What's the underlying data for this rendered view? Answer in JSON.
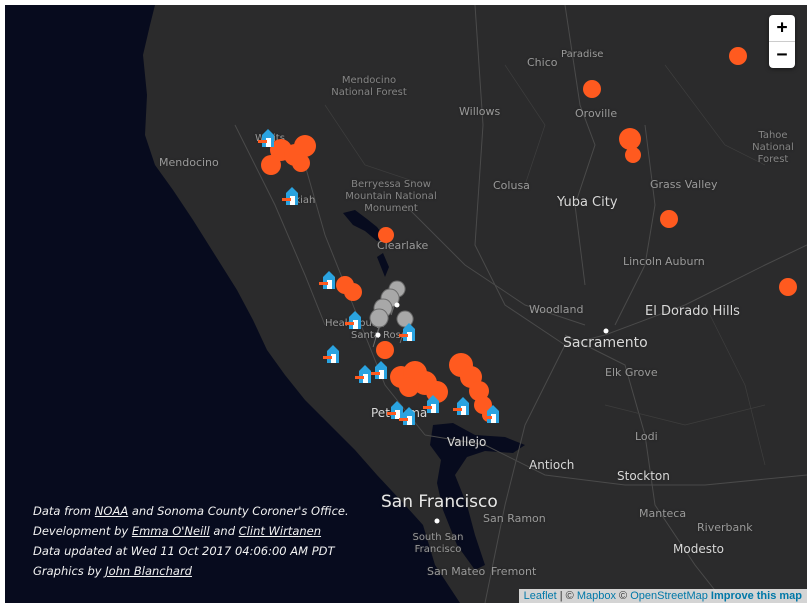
{
  "zoom": {
    "in_label": "+",
    "out_label": "−"
  },
  "places": {
    "chico": "Chico",
    "paradise": "Paradise",
    "mendocino_nf": "Mendocino National Forest",
    "oroville": "Oroville",
    "willows": "Willows",
    "tahoe_nf": "Tahoe National Forest",
    "mendocino": "Mendocino",
    "willits": "Willits",
    "grass_valley": "Grass Valley",
    "colusa": "Colusa",
    "berryessa": "Berryessa Snow Mountain National Monument",
    "yuba_city": "Yuba City",
    "ukiah": "Ukiah",
    "clearlake": "Clearlake",
    "lincoln": "Lincoln",
    "auburn": "Auburn",
    "woodland": "Woodland",
    "el_dorado_hills": "El Dorado Hills",
    "healdsburg": "Healdsburg",
    "sacramento": "Sacramento",
    "santa_rosa": "Santa Rosa",
    "elk_grove": "Elk Grove",
    "petaluma": "Petaluma",
    "lodi": "Lodi",
    "vallejo": "Vallejo",
    "antioch": "Antioch",
    "stockton": "Stockton",
    "san_francisco": "San Francisco",
    "san_ramon": "San Ramon",
    "south_sf": "South San Francisco",
    "manteca": "Manteca",
    "riverbank": "Riverbank",
    "modesto": "Modesto",
    "san_mateo": "San Mateo",
    "fremont": "Fremont"
  },
  "credits": {
    "line1_pre": "Data from ",
    "line1_link": "NOAA",
    "line1_post": " and Sonoma County Coroner's Office.",
    "line2_pre": "Development by ",
    "line2_link1": "Emma O'Neill",
    "line2_mid": " and ",
    "line2_link2": "Clint Wirtanen",
    "line3": "Data updated at Wed 11 Oct 2017 04:06:00 AM PDT",
    "line4_pre": "Graphics by ",
    "line4_link": "John Blanchard"
  },
  "attribution": {
    "leaflet": "Leaflet",
    "sep1": " | © ",
    "mapbox": "Mapbox",
    "sep2": " © ",
    "osm": "OpenStreetMap",
    "improve": "Improve this map"
  },
  "colors": {
    "fire": "#ff5a1f",
    "shelter": "#2aa3e0",
    "pin": "#a8a8a8",
    "land": "#2b2b2c",
    "water": "#070b1e"
  }
}
